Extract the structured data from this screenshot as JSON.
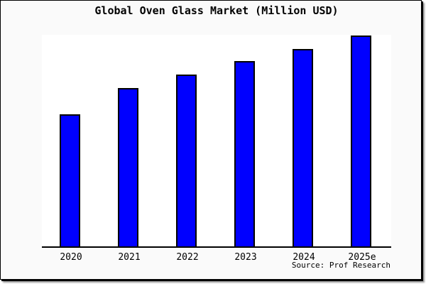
{
  "chart_data": {
    "type": "bar",
    "title": "Global Oven Glass Market (Million USD)",
    "categories": [
      "2020",
      "2021",
      "2022",
      "2023",
      "2024",
      "2025e"
    ],
    "values": [
      187,
      224,
      244,
      263,
      280,
      299
    ],
    "xlabel": "",
    "ylabel": "",
    "ylim": [
      0,
      300
    ],
    "grid": false,
    "legend": "none",
    "y_axis_labels_shown": false,
    "bar_color": "#0000ff",
    "bar_edge_color": "#000000",
    "background_color": "#fafafa",
    "plot_background_color": "#ffffff",
    "source": "Source: Prof Research"
  }
}
